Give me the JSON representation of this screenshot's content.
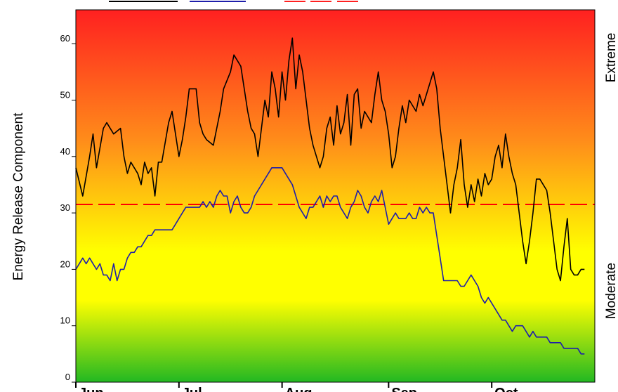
{
  "chart_data": {
    "type": "line",
    "title": "",
    "ylabel": "Energy Release Component",
    "right_labels": {
      "top": "Extreme",
      "bottom": "Moderate"
    },
    "ylim": [
      0,
      66
    ],
    "yticks": [
      {
        "value": 0,
        "label": "0"
      },
      {
        "value": 10,
        "label": "10"
      },
      {
        "value": 20,
        "label": "20"
      },
      {
        "value": 30,
        "label": "30"
      },
      {
        "value": 40,
        "label": "40"
      },
      {
        "value": 50,
        "label": "50"
      },
      {
        "value": 60,
        "label": "60"
      }
    ],
    "xlim": [
      0,
      151
    ],
    "xticks": [
      {
        "day": 0,
        "label": "Jun"
      },
      {
        "day": 30,
        "label": "Jul"
      },
      {
        "day": 60,
        "label": "Aug"
      },
      {
        "day": 91,
        "label": "Sep"
      },
      {
        "day": 121,
        "label": "Oct"
      }
    ],
    "grid": false,
    "background_gradient": [
      "#ff2020",
      "#ff8c1a",
      "#ffff00",
      "#ffff00",
      "#22b822"
    ],
    "threshold": {
      "value": 31.5,
      "color": "#ff0000",
      "style": "dashed"
    },
    "series": [
      {
        "color": "#000000",
        "points": [
          [
            0,
            38
          ],
          [
            2,
            33
          ],
          [
            4,
            40
          ],
          [
            5,
            44
          ],
          [
            6,
            38
          ],
          [
            8,
            45
          ],
          [
            9,
            46
          ],
          [
            11,
            44
          ],
          [
            13,
            45
          ],
          [
            14,
            40
          ],
          [
            15,
            37
          ],
          [
            16,
            39
          ],
          [
            18,
            37
          ],
          [
            19,
            35
          ],
          [
            20,
            39
          ],
          [
            21,
            37
          ],
          [
            22,
            38
          ],
          [
            23,
            33
          ],
          [
            24,
            39
          ],
          [
            25,
            39
          ],
          [
            27,
            46
          ],
          [
            28,
            48
          ],
          [
            29,
            44
          ],
          [
            30,
            40
          ],
          [
            31,
            43
          ],
          [
            32,
            47
          ],
          [
            33,
            52
          ],
          [
            35,
            52
          ],
          [
            36,
            46
          ],
          [
            37,
            44
          ],
          [
            38,
            43
          ],
          [
            40,
            42
          ],
          [
            42,
            48
          ],
          [
            43,
            52
          ],
          [
            45,
            55
          ],
          [
            46,
            58
          ],
          [
            48,
            56
          ],
          [
            49,
            52
          ],
          [
            50,
            48
          ],
          [
            51,
            45
          ],
          [
            52,
            44
          ],
          [
            53,
            40
          ],
          [
            54,
            45
          ],
          [
            55,
            50
          ],
          [
            56,
            47
          ],
          [
            57,
            55
          ],
          [
            58,
            52
          ],
          [
            59,
            47
          ],
          [
            60,
            55
          ],
          [
            61,
            50
          ],
          [
            62,
            57
          ],
          [
            63,
            61
          ],
          [
            64,
            52
          ],
          [
            65,
            58
          ],
          [
            66,
            55
          ],
          [
            67,
            50
          ],
          [
            68,
            45
          ],
          [
            69,
            42
          ],
          [
            70,
            40
          ],
          [
            71,
            38
          ],
          [
            72,
            40
          ],
          [
            73,
            45
          ],
          [
            74,
            47
          ],
          [
            75,
            42
          ],
          [
            76,
            49
          ],
          [
            77,
            44
          ],
          [
            78,
            46
          ],
          [
            79,
            51
          ],
          [
            80,
            42
          ],
          [
            81,
            51
          ],
          [
            82,
            52
          ],
          [
            83,
            45
          ],
          [
            84,
            48
          ],
          [
            86,
            46
          ],
          [
            87,
            51
          ],
          [
            88,
            55
          ],
          [
            89,
            50
          ],
          [
            90,
            48
          ],
          [
            91,
            44
          ],
          [
            92,
            38
          ],
          [
            93,
            40
          ],
          [
            94,
            45
          ],
          [
            95,
            49
          ],
          [
            96,
            46
          ],
          [
            97,
            50
          ],
          [
            98,
            49
          ],
          [
            99,
            48
          ],
          [
            100,
            51
          ],
          [
            101,
            49
          ],
          [
            102,
            51
          ],
          [
            103,
            53
          ],
          [
            104,
            55
          ],
          [
            105,
            52
          ],
          [
            106,
            45
          ],
          [
            107,
            40
          ],
          [
            108,
            35
          ],
          [
            109,
            30
          ],
          [
            110,
            35
          ],
          [
            111,
            38
          ],
          [
            112,
            43
          ],
          [
            113,
            35
          ],
          [
            114,
            31
          ],
          [
            115,
            35
          ],
          [
            116,
            32
          ],
          [
            117,
            36
          ],
          [
            118,
            33
          ],
          [
            119,
            37
          ],
          [
            120,
            35
          ],
          [
            121,
            36
          ],
          [
            122,
            40
          ],
          [
            123,
            42
          ],
          [
            124,
            38
          ],
          [
            125,
            44
          ],
          [
            126,
            40
          ],
          [
            127,
            37
          ],
          [
            128,
            35
          ],
          [
            129,
            30
          ],
          [
            130,
            25
          ],
          [
            131,
            21
          ],
          [
            132,
            25
          ],
          [
            133,
            30
          ],
          [
            134,
            36
          ],
          [
            135,
            36
          ],
          [
            136,
            35
          ],
          [
            137,
            34
          ],
          [
            138,
            30
          ],
          [
            139,
            25
          ],
          [
            140,
            20
          ],
          [
            141,
            18
          ],
          [
            142,
            24
          ],
          [
            143,
            29
          ],
          [
            144,
            20
          ],
          [
            145,
            19
          ],
          [
            146,
            19
          ],
          [
            147,
            20
          ],
          [
            148,
            20
          ]
        ]
      },
      {
        "color": "#1e1eaa",
        "points": [
          [
            0,
            20
          ],
          [
            1,
            21
          ],
          [
            2,
            22
          ],
          [
            3,
            21
          ],
          [
            4,
            22
          ],
          [
            5,
            21
          ],
          [
            6,
            20
          ],
          [
            7,
            21
          ],
          [
            8,
            19
          ],
          [
            9,
            19
          ],
          [
            10,
            18
          ],
          [
            11,
            21
          ],
          [
            12,
            18
          ],
          [
            13,
            20
          ],
          [
            14,
            20
          ],
          [
            15,
            22
          ],
          [
            16,
            23
          ],
          [
            17,
            23
          ],
          [
            18,
            24
          ],
          [
            19,
            24
          ],
          [
            20,
            25
          ],
          [
            21,
            26
          ],
          [
            22,
            26
          ],
          [
            23,
            27
          ],
          [
            24,
            27
          ],
          [
            25,
            27
          ],
          [
            26,
            27
          ],
          [
            27,
            27
          ],
          [
            28,
            27
          ],
          [
            29,
            28
          ],
          [
            30,
            29
          ],
          [
            31,
            30
          ],
          [
            32,
            31
          ],
          [
            33,
            31
          ],
          [
            34,
            31
          ],
          [
            35,
            31
          ],
          [
            36,
            31
          ],
          [
            37,
            32
          ],
          [
            38,
            31
          ],
          [
            39,
            32
          ],
          [
            40,
            31
          ],
          [
            41,
            33
          ],
          [
            42,
            34
          ],
          [
            43,
            33
          ],
          [
            44,
            33
          ],
          [
            45,
            30
          ],
          [
            46,
            32
          ],
          [
            47,
            33
          ],
          [
            48,
            31
          ],
          [
            49,
            30
          ],
          [
            50,
            30
          ],
          [
            51,
            31
          ],
          [
            52,
            33
          ],
          [
            53,
            34
          ],
          [
            54,
            35
          ],
          [
            55,
            36
          ],
          [
            56,
            37
          ],
          [
            57,
            38
          ],
          [
            58,
            38
          ],
          [
            59,
            38
          ],
          [
            60,
            38
          ],
          [
            61,
            37
          ],
          [
            62,
            36
          ],
          [
            63,
            35
          ],
          [
            64,
            33
          ],
          [
            65,
            31
          ],
          [
            66,
            30
          ],
          [
            67,
            29
          ],
          [
            68,
            31
          ],
          [
            69,
            31
          ],
          [
            70,
            32
          ],
          [
            71,
            33
          ],
          [
            72,
            31
          ],
          [
            73,
            33
          ],
          [
            74,
            32
          ],
          [
            75,
            33
          ],
          [
            76,
            33
          ],
          [
            77,
            31
          ],
          [
            78,
            30
          ],
          [
            79,
            29
          ],
          [
            80,
            31
          ],
          [
            81,
            32
          ],
          [
            82,
            34
          ],
          [
            83,
            33
          ],
          [
            84,
            31
          ],
          [
            85,
            30
          ],
          [
            86,
            32
          ],
          [
            87,
            33
          ],
          [
            88,
            32
          ],
          [
            89,
            34
          ],
          [
            90,
            31
          ],
          [
            91,
            28
          ],
          [
            92,
            29
          ],
          [
            93,
            30
          ],
          [
            94,
            29
          ],
          [
            95,
            29
          ],
          [
            96,
            29
          ],
          [
            97,
            30
          ],
          [
            98,
            29
          ],
          [
            99,
            29
          ],
          [
            100,
            31
          ],
          [
            101,
            30
          ],
          [
            102,
            31
          ],
          [
            103,
            30
          ],
          [
            104,
            30
          ],
          [
            105,
            26
          ],
          [
            106,
            22
          ],
          [
            107,
            18
          ],
          [
            108,
            18
          ],
          [
            109,
            18
          ],
          [
            110,
            18
          ],
          [
            111,
            18
          ],
          [
            112,
            17
          ],
          [
            113,
            17
          ],
          [
            114,
            18
          ],
          [
            115,
            19
          ],
          [
            116,
            18
          ],
          [
            117,
            17
          ],
          [
            118,
            15
          ],
          [
            119,
            14
          ],
          [
            120,
            15
          ],
          [
            121,
            14
          ],
          [
            122,
            13
          ],
          [
            123,
            12
          ],
          [
            124,
            11
          ],
          [
            125,
            11
          ],
          [
            126,
            10
          ],
          [
            127,
            9
          ],
          [
            128,
            10
          ],
          [
            129,
            10
          ],
          [
            130,
            10
          ],
          [
            131,
            9
          ],
          [
            132,
            8
          ],
          [
            133,
            9
          ],
          [
            134,
            8
          ],
          [
            135,
            8
          ],
          [
            136,
            8
          ],
          [
            137,
            8
          ],
          [
            138,
            7
          ],
          [
            139,
            7
          ],
          [
            140,
            7
          ],
          [
            141,
            7
          ],
          [
            142,
            6
          ],
          [
            143,
            6
          ],
          [
            144,
            6
          ],
          [
            145,
            6
          ],
          [
            146,
            6
          ],
          [
            147,
            5
          ],
          [
            148,
            5
          ]
        ]
      }
    ],
    "legend": {
      "placement": "top",
      "swatches": [
        {
          "color": "#000000"
        },
        {
          "color": "#1e1eaa"
        },
        {
          "color": "#ff2020"
        },
        {
          "color": "#ff2020"
        },
        {
          "color": "#ff2020"
        }
      ]
    }
  }
}
